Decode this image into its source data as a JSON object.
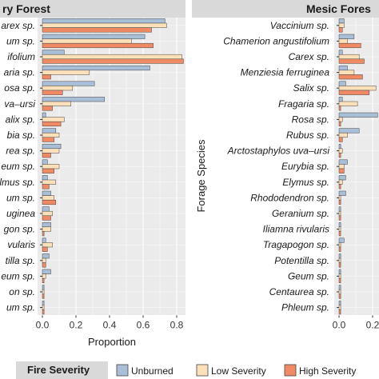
{
  "chart_data": [
    {
      "type": "bar",
      "orientation": "horizontal",
      "panel": "Dry Forest",
      "title": "Dry Forest",
      "title_visible": "ry Forest",
      "xlabel": "Proportion",
      "ylabel": "",
      "xlim": [
        0,
        0.86
      ],
      "xticks": [
        "0.0",
        "0.2",
        "0.4",
        "0.6",
        "0.8"
      ],
      "grid": true,
      "categories_visible": [
        "Carex sp.",
        "…um sp.",
        "…ifolium",
        "…aria sp.",
        "…osa sp.",
        "…a–ursi",
        "…alix sp.",
        "…bia sp.",
        "…rea sp.",
        "…eum sp.",
        "…mus sp.",
        "…um sp.",
        "…uginea",
        "…gon sp.",
        "…vularis",
        "…tilla sp.",
        "…um sp.",
        "…on sp.",
        "…um sp."
      ],
      "categories_visible_text": [
        "arex sp.",
        "um sp.",
        "ifolium",
        "aria sp.",
        "osa sp.",
        "va–ursi",
        "alix sp.",
        "bia sp.",
        "rea sp.",
        "eum sp.",
        "lmus sp.",
        "um sp.",
        "uginea",
        "gon sp.",
        "vularis",
        "tilla sp.",
        "eum sp.",
        "on sp.",
        "um sp."
      ],
      "series": [
        {
          "name": "Unburned",
          "values": [
            0.73,
            0.61,
            0.13,
            0.64,
            0.31,
            0.37,
            0.02,
            0.08,
            0.11,
            0.03,
            0.03,
            0.05,
            0.04,
            0.05,
            0.02,
            0.04,
            0.05,
            0.01,
            0.01
          ]
        },
        {
          "name": "Low Severity",
          "values": [
            0.74,
            0.53,
            0.83,
            0.28,
            0.18,
            0.17,
            0.13,
            0.1,
            0.1,
            0.1,
            0.08,
            0.07,
            0.06,
            0.05,
            0.06,
            0.02,
            0.02,
            0.01,
            0.01
          ]
        },
        {
          "name": "High Severity",
          "values": [
            0.65,
            0.66,
            0.84,
            0.05,
            0.12,
            0.06,
            0.11,
            0.07,
            0.05,
            0.07,
            0.04,
            0.08,
            0.05,
            0.01,
            0.03,
            0.02,
            0.01,
            0.01,
            0.01
          ]
        }
      ]
    },
    {
      "type": "bar",
      "orientation": "horizontal",
      "panel": "Mesic Forest",
      "title": "Mesic Forest",
      "title_visible": "Mesic Fores",
      "xlabel": "",
      "ylabel": "Forage Species",
      "xlim": [
        0,
        0.86
      ],
      "xticks": [
        "0.0",
        "0.2"
      ],
      "grid": true,
      "categories": [
        "Vaccinium sp.",
        "Chamerion angustifolium",
        "Carex sp.",
        "Menziesia ferruginea",
        "Salix sp.",
        "Fragaria sp.",
        "Rosa sp.",
        "Rubus sp.",
        "Arctostaphylos uva–ursi",
        "Eurybia sp.",
        "Elymus sp.",
        "Rhododendron sp.",
        "Geranium sp.",
        "Iliamna rivularis",
        "Tragapogon sp.",
        "Potentilla sp.",
        "Geum sp.",
        "Centaurea sp.",
        "Phleum sp."
      ],
      "series": [
        {
          "name": "Unburned",
          "values": [
            0.03,
            0.09,
            0.02,
            0.05,
            0.04,
            0.02,
            0.23,
            0.12,
            0.01,
            0.05,
            0.04,
            0.04,
            0.01,
            0.01,
            0.03,
            0.01,
            0.01,
            0.01,
            0.01
          ]
        },
        {
          "name": "Low Severity",
          "values": [
            0.03,
            0.05,
            0.12,
            0.09,
            0.22,
            0.11,
            0.02,
            0.05,
            0.02,
            0.03,
            0.02,
            0.01,
            0.01,
            0.01,
            0.01,
            0.01,
            0.01,
            0.01,
            0.01
          ]
        },
        {
          "name": "High Severity",
          "values": [
            0.02,
            0.13,
            0.15,
            0.14,
            0.18,
            0.01,
            0.01,
            0.02,
            0.01,
            0.03,
            0.01,
            0.01,
            0.01,
            0.01,
            0.01,
            0.01,
            0.01,
            0.01,
            0.01
          ]
        }
      ]
    }
  ],
  "legend": {
    "title": "Fire Severity",
    "placement": "bottom",
    "items": [
      {
        "label": "Unburned",
        "color": "#a9bfd8"
      },
      {
        "label": "Low Severity",
        "color": "#fbe0b9"
      },
      {
        "label": "High Severity",
        "color": "#f08a64"
      }
    ]
  },
  "colors": {
    "unburned": "#a9bfd8",
    "low_severity": "#fbe0b9",
    "high_severity": "#f08a64",
    "panel_background": "#ebebeb",
    "strip_background": "#d9d9d9",
    "gridline": "#ffffff"
  }
}
